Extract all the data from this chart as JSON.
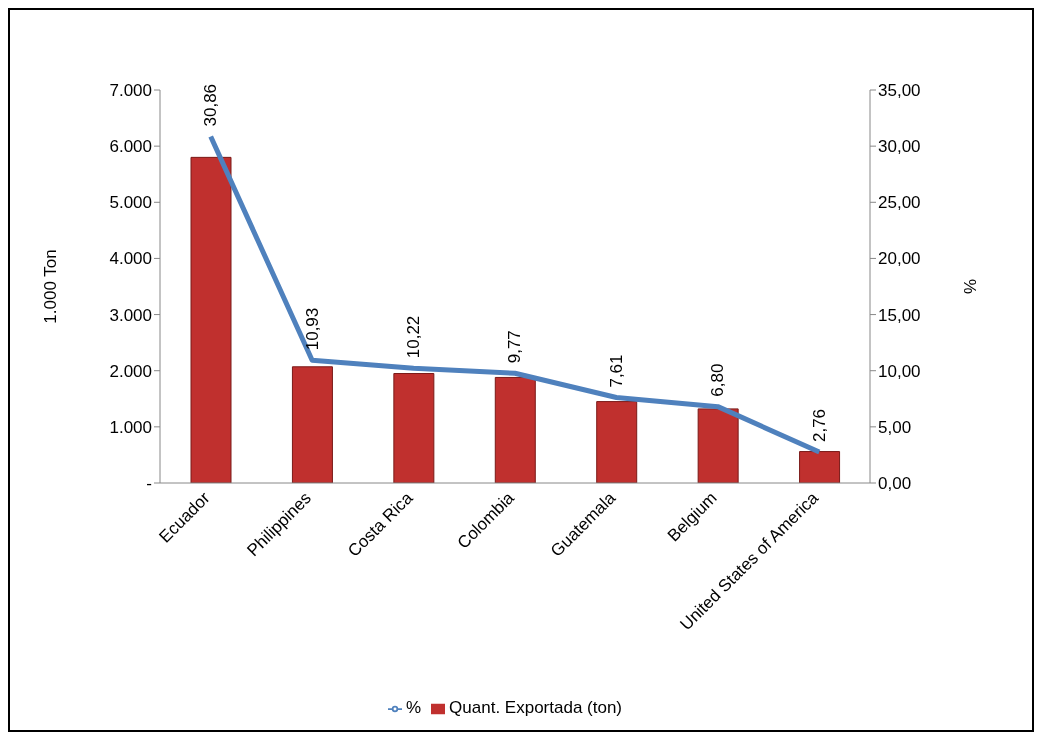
{
  "chart_data": {
    "type": "bar",
    "categories": [
      "Ecuador",
      "Philippines",
      "Costa Rica",
      "Colombia",
      "Guatemala",
      "Belgium",
      "United States of America"
    ],
    "series": [
      {
        "name": "Quant. Exportada (ton)",
        "color": "#c0302e",
        "values": [
          5800,
          2070,
          1950,
          1880,
          1450,
          1320,
          560
        ]
      },
      {
        "name": "%",
        "type": "line",
        "axis": "y2",
        "color": "#4f81bd",
        "values": [
          30.86,
          10.93,
          10.22,
          9.77,
          7.61,
          6.8,
          2.76
        ],
        "value_labels": [
          "30,86",
          "10,93",
          "10,22",
          "9,77",
          "7,61",
          "6,80",
          "2,76"
        ]
      }
    ],
    "ylabel": "1.000 Ton",
    "y2label": "%",
    "ylim": [
      0,
      7000
    ],
    "yticks": [
      {
        "value": 0,
        "label": "-"
      },
      {
        "value": 1000,
        "label": "1.000"
      },
      {
        "value": 2000,
        "label": "2.000"
      },
      {
        "value": 3000,
        "label": "3.000"
      },
      {
        "value": 4000,
        "label": "4.000"
      },
      {
        "value": 5000,
        "label": "5.000"
      },
      {
        "value": 6000,
        "label": "6.000"
      },
      {
        "value": 7000,
        "label": "7.000"
      }
    ],
    "y2lim": [
      0,
      35
    ],
    "y2ticks": [
      {
        "value": 0,
        "label": "0,00"
      },
      {
        "value": 5,
        "label": "5,00"
      },
      {
        "value": 10,
        "label": "10,00"
      },
      {
        "value": 15,
        "label": "15,00"
      },
      {
        "value": 20,
        "label": "20,00"
      },
      {
        "value": 25,
        "label": "25,00"
      },
      {
        "value": 30,
        "label": "30,00"
      },
      {
        "value": 35,
        "label": "35,00"
      }
    ],
    "grid": false,
    "legend": "bottom",
    "marker": "none",
    "line_style": "solid"
  }
}
